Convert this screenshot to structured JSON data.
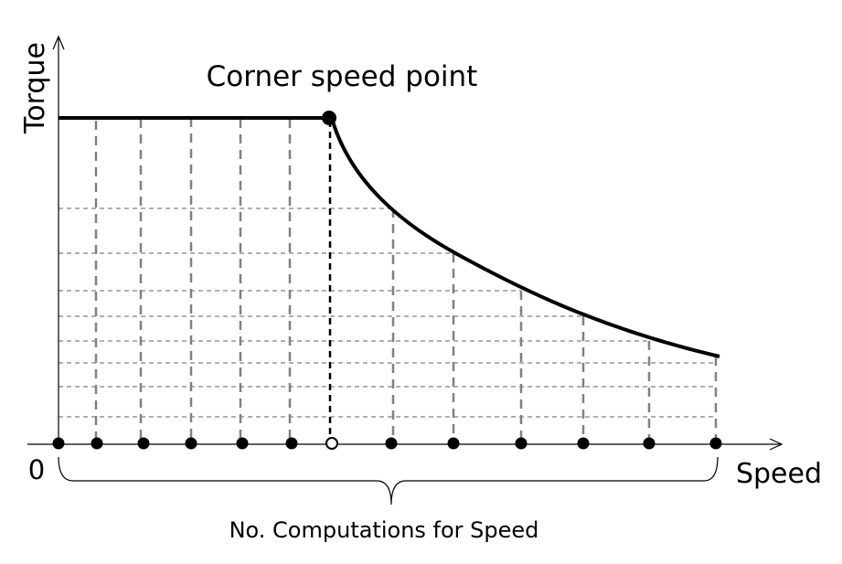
{
  "labels": {
    "title": "Corner speed point",
    "y_axis": "Torque",
    "x_axis": "Speed",
    "origin": "0",
    "brace_label": "No. Computations for Speed"
  },
  "colors": {
    "curve": "#000000",
    "grid": "#808080",
    "axis": "#000000"
  }
}
